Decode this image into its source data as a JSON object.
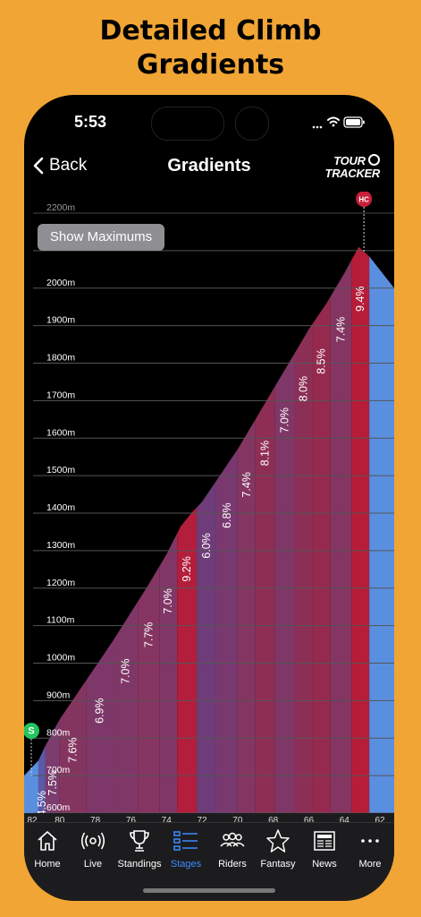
{
  "headline": {
    "line1": "Detailed Climb",
    "line2": "Gradients"
  },
  "status": {
    "time": "5:53"
  },
  "nav": {
    "back_label": "Back",
    "title": "Gradients",
    "logo_line1": "TOUR",
    "logo_line2": "TRACKER"
  },
  "show_max_label": "Show Maximums",
  "chart_data": {
    "type": "area",
    "y_labels": [
      "2200m",
      "2100m",
      "2000m",
      "1900m",
      "1800m",
      "1700m",
      "1600m",
      "1500m",
      "1400m",
      "1300m",
      "1200m",
      "1100m",
      "1000m",
      "900m",
      "800m",
      "700m",
      "600m"
    ],
    "ylim": [
      600,
      2200
    ],
    "x_labels": [
      "82",
      "80",
      "78",
      "76",
      "74",
      "72",
      "70",
      "68",
      "66",
      "64",
      "62"
    ],
    "xlim": [
      82,
      61.2
    ],
    "elevation_points": [
      [
        82,
        700
      ],
      [
        81.2,
        740
      ],
      [
        80.8,
        780
      ],
      [
        80,
        850
      ],
      [
        79,
        920
      ],
      [
        78,
        990
      ],
      [
        77,
        1060
      ],
      [
        76,
        1135
      ],
      [
        75,
        1210
      ],
      [
        74,
        1290
      ],
      [
        73.2,
        1365
      ],
      [
        72.6,
        1400
      ],
      [
        72,
        1430
      ],
      [
        71,
        1500
      ],
      [
        70,
        1570
      ],
      [
        69,
        1650
      ],
      [
        68,
        1730
      ],
      [
        67,
        1810
      ],
      [
        66,
        1890
      ],
      [
        65,
        1960
      ],
      [
        64,
        2040
      ],
      [
        63.2,
        2110
      ],
      [
        62.6,
        2085
      ],
      [
        61.2,
        2000
      ]
    ],
    "segments": [
      {
        "from": 82,
        "to": 81.2,
        "gradient": "",
        "color": "#5A8FE0"
      },
      {
        "from": 81.2,
        "to": 80.8,
        "gradient": "4.5%",
        "color": "#5B5AA8"
      },
      {
        "from": 80.8,
        "to": 80,
        "gradient": "7.5%",
        "color": "#7C3C6E"
      },
      {
        "from": 80,
        "to": 78.5,
        "gradient": "7.6%",
        "color": "#84355F"
      },
      {
        "from": 78.5,
        "to": 77,
        "gradient": "6.9%",
        "color": "#7E3769"
      },
      {
        "from": 77,
        "to": 75.6,
        "gradient": "7.0%",
        "color": "#7F3767"
      },
      {
        "from": 75.6,
        "to": 74.4,
        "gradient": "7.7%",
        "color": "#863462"
      },
      {
        "from": 74.4,
        "to": 73.4,
        "gradient": "7.0%",
        "color": "#803666"
      },
      {
        "from": 73.4,
        "to": 72.3,
        "gradient": "9.2%",
        "color": "#B21E3C"
      },
      {
        "from": 72.3,
        "to": 71.2,
        "gradient": "6.0%",
        "color": "#6E3C78"
      },
      {
        "from": 71.2,
        "to": 70,
        "gradient": "6.8%",
        "color": "#7A3870"
      },
      {
        "from": 70,
        "to": 69,
        "gradient": "7.4%",
        "color": "#843562"
      },
      {
        "from": 69,
        "to": 67.9,
        "gradient": "8.1%",
        "color": "#8E2E55"
      },
      {
        "from": 67.9,
        "to": 66.8,
        "gradient": "7.0%",
        "color": "#7E3767"
      },
      {
        "from": 66.8,
        "to": 65.8,
        "gradient": "8.0%",
        "color": "#8C2F57"
      },
      {
        "from": 65.8,
        "to": 64.8,
        "gradient": "8.5%",
        "color": "#952A4E"
      },
      {
        "from": 64.8,
        "to": 63.6,
        "gradient": "7.4%",
        "color": "#843562"
      },
      {
        "from": 63.6,
        "to": 62.6,
        "gradient": "9.4%",
        "color": "#B71C38"
      },
      {
        "from": 62.6,
        "to": 61.2,
        "gradient": "",
        "color": "#5A8FE0"
      }
    ],
    "markers": [
      {
        "label": "S",
        "x": 82,
        "color": "#22C55E"
      },
      {
        "label": "HC",
        "x": 62.9,
        "color": "#C81E3A"
      }
    ],
    "grid": true
  },
  "tabs": [
    {
      "label": "Home",
      "icon": "home-icon"
    },
    {
      "label": "Live",
      "icon": "live-icon"
    },
    {
      "label": "Standings",
      "icon": "trophy-icon"
    },
    {
      "label": "Stages",
      "icon": "stages-icon",
      "active": true
    },
    {
      "label": "Riders",
      "icon": "riders-icon"
    },
    {
      "label": "Fantasy",
      "icon": "star-icon"
    },
    {
      "label": "News",
      "icon": "news-icon"
    },
    {
      "label": "More",
      "icon": "more-icon"
    }
  ]
}
